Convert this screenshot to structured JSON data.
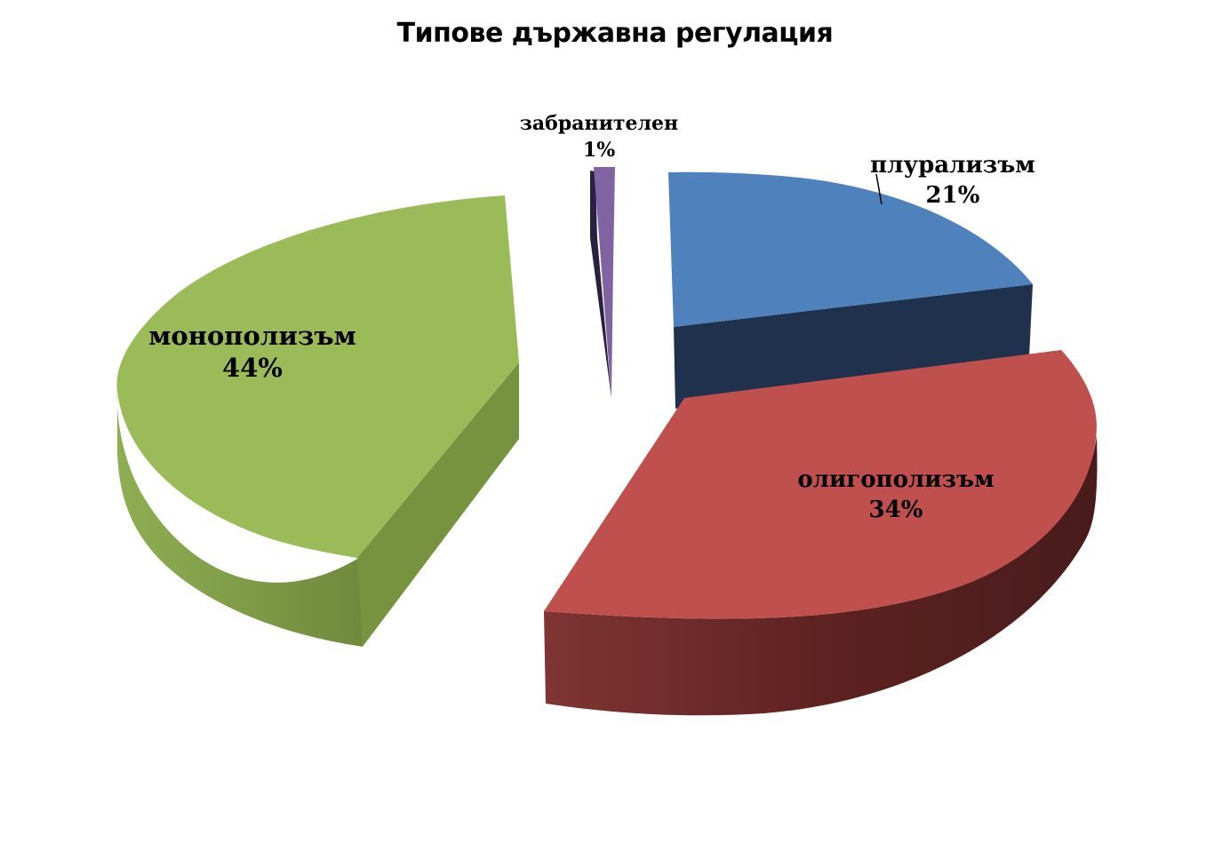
{
  "chart_data": {
    "type": "pie",
    "style": "3d-exploded",
    "title": "Типове държавна регулация",
    "slices": [
      {
        "label": "плурализъм",
        "value": 21,
        "value_label": "21%",
        "color": "#4F81BD"
      },
      {
        "label": "олигополизъм",
        "value": 34,
        "value_label": "34%",
        "color": "#C0504D"
      },
      {
        "label": "монополизъм",
        "value": 44,
        "value_label": "44%",
        "color": "#9BBB59"
      },
      {
        "label": "забранителен",
        "value": 1,
        "value_label": "1%",
        "color": "#8064A2"
      }
    ],
    "legend": "none"
  }
}
